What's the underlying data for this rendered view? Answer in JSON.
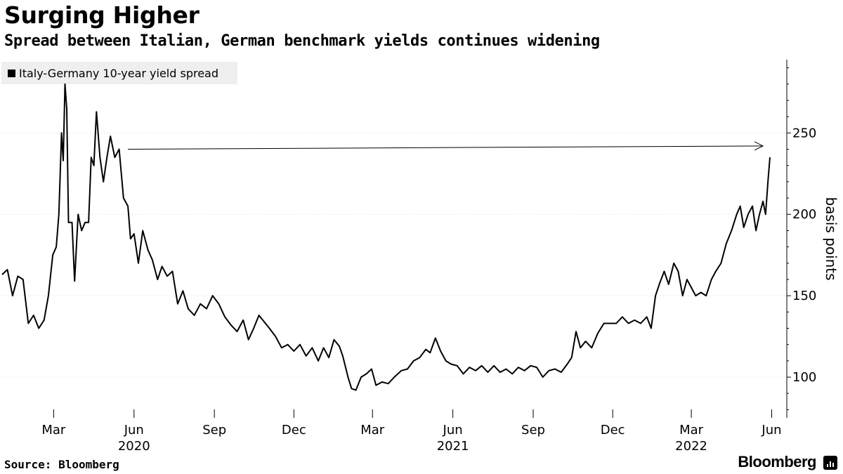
{
  "chart_data": {
    "type": "line",
    "title": "Surging Higher",
    "subtitle": "Spread between Italian, German benchmark yields continues widening",
    "legend": "Italy-Germany 10-year yield spread",
    "ylabel": "basis points",
    "ylim": [
      75,
      295
    ],
    "yticks": [
      100,
      150,
      200,
      250
    ],
    "x_month_ticks": [
      {
        "label": "Mar",
        "date": "2020-03-01"
      },
      {
        "label": "Jun",
        "date": "2020-06-01"
      },
      {
        "label": "Sep",
        "date": "2020-09-01"
      },
      {
        "label": "Dec",
        "date": "2020-12-01"
      },
      {
        "label": "Mar",
        "date": "2021-03-01"
      },
      {
        "label": "Jun",
        "date": "2021-06-01"
      },
      {
        "label": "Sep",
        "date": "2021-09-01"
      },
      {
        "label": "Dec",
        "date": "2021-12-01"
      },
      {
        "label": "Mar",
        "date": "2022-03-01"
      },
      {
        "label": "Jun",
        "date": "2022-06-01"
      }
    ],
    "x_year_labels": [
      {
        "label": "2020",
        "date": "2020-06-01"
      },
      {
        "label": "2021",
        "date": "2021-06-01"
      },
      {
        "label": "2022",
        "date": "2022-03-01"
      }
    ],
    "series": [
      {
        "name": "Italy-Germany 10-year yield spread",
        "points": [
          [
            "2020-01-02",
            163
          ],
          [
            "2020-01-08",
            166
          ],
          [
            "2020-01-14",
            150
          ],
          [
            "2020-01-20",
            162
          ],
          [
            "2020-01-26",
            160
          ],
          [
            "2020-02-01",
            133
          ],
          [
            "2020-02-07",
            138
          ],
          [
            "2020-02-13",
            130
          ],
          [
            "2020-02-19",
            135
          ],
          [
            "2020-02-24",
            150
          ],
          [
            "2020-02-29",
            175
          ],
          [
            "2020-03-04",
            180
          ],
          [
            "2020-03-07",
            200
          ],
          [
            "2020-03-10",
            250
          ],
          [
            "2020-03-12",
            233
          ],
          [
            "2020-03-14",
            280
          ],
          [
            "2020-03-16",
            265
          ],
          [
            "2020-03-18",
            195
          ],
          [
            "2020-03-22",
            195
          ],
          [
            "2020-03-25",
            159
          ],
          [
            "2020-03-29",
            200
          ],
          [
            "2020-04-02",
            190
          ],
          [
            "2020-04-06",
            195
          ],
          [
            "2020-04-10",
            195
          ],
          [
            "2020-04-13",
            235
          ],
          [
            "2020-04-16",
            230
          ],
          [
            "2020-04-19",
            263
          ],
          [
            "2020-04-23",
            235
          ],
          [
            "2020-04-27",
            220
          ],
          [
            "2020-05-01",
            235
          ],
          [
            "2020-05-05",
            248
          ],
          [
            "2020-05-10",
            235
          ],
          [
            "2020-05-15",
            240
          ],
          [
            "2020-05-20",
            210
          ],
          [
            "2020-05-25",
            205
          ],
          [
            "2020-05-28",
            185
          ],
          [
            "2020-06-01",
            188
          ],
          [
            "2020-06-06",
            170
          ],
          [
            "2020-06-11",
            190
          ],
          [
            "2020-06-17",
            178
          ],
          [
            "2020-06-22",
            172
          ],
          [
            "2020-06-28",
            160
          ],
          [
            "2020-07-03",
            168
          ],
          [
            "2020-07-09",
            162
          ],
          [
            "2020-07-15",
            165
          ],
          [
            "2020-07-21",
            145
          ],
          [
            "2020-07-27",
            153
          ],
          [
            "2020-08-02",
            142
          ],
          [
            "2020-08-09",
            138
          ],
          [
            "2020-08-16",
            145
          ],
          [
            "2020-08-23",
            142
          ],
          [
            "2020-08-30",
            150
          ],
          [
            "2020-09-06",
            145
          ],
          [
            "2020-09-13",
            137
          ],
          [
            "2020-09-20",
            132
          ],
          [
            "2020-09-27",
            128
          ],
          [
            "2020-10-04",
            135
          ],
          [
            "2020-10-10",
            123
          ],
          [
            "2020-10-16",
            130
          ],
          [
            "2020-10-22",
            138
          ],
          [
            "2020-10-28",
            134
          ],
          [
            "2020-11-03",
            130
          ],
          [
            "2020-11-10",
            125
          ],
          [
            "2020-11-17",
            118
          ],
          [
            "2020-11-24",
            120
          ],
          [
            "2020-12-01",
            116
          ],
          [
            "2020-12-08",
            120
          ],
          [
            "2020-12-15",
            113
          ],
          [
            "2020-12-22",
            118
          ],
          [
            "2020-12-29",
            110
          ],
          [
            "2021-01-04",
            118
          ],
          [
            "2021-01-10",
            112
          ],
          [
            "2021-01-16",
            123
          ],
          [
            "2021-01-22",
            119
          ],
          [
            "2021-01-26",
            113
          ],
          [
            "2021-02-01",
            100
          ],
          [
            "2021-02-05",
            93
          ],
          [
            "2021-02-10",
            92
          ],
          [
            "2021-02-16",
            100
          ],
          [
            "2021-02-22",
            102
          ],
          [
            "2021-02-28",
            105
          ],
          [
            "2021-03-05",
            95
          ],
          [
            "2021-03-12",
            97
          ],
          [
            "2021-03-19",
            96
          ],
          [
            "2021-03-26",
            100
          ],
          [
            "2021-04-03",
            104
          ],
          [
            "2021-04-10",
            105
          ],
          [
            "2021-04-17",
            110
          ],
          [
            "2021-04-24",
            112
          ],
          [
            "2021-05-01",
            117
          ],
          [
            "2021-05-06",
            115
          ],
          [
            "2021-05-12",
            124
          ],
          [
            "2021-05-18",
            116
          ],
          [
            "2021-05-24",
            110
          ],
          [
            "2021-05-30",
            108
          ],
          [
            "2021-06-06",
            107
          ],
          [
            "2021-06-13",
            102
          ],
          [
            "2021-06-20",
            106
          ],
          [
            "2021-06-27",
            104
          ],
          [
            "2021-07-04",
            107
          ],
          [
            "2021-07-11",
            103
          ],
          [
            "2021-07-18",
            107
          ],
          [
            "2021-07-25",
            103
          ],
          [
            "2021-08-01",
            105
          ],
          [
            "2021-08-08",
            102
          ],
          [
            "2021-08-15",
            106
          ],
          [
            "2021-08-22",
            104
          ],
          [
            "2021-08-29",
            107
          ],
          [
            "2021-09-05",
            106
          ],
          [
            "2021-09-12",
            100
          ],
          [
            "2021-09-19",
            104
          ],
          [
            "2021-09-26",
            105
          ],
          [
            "2021-10-03",
            103
          ],
          [
            "2021-10-10",
            108
          ],
          [
            "2021-10-15",
            112
          ],
          [
            "2021-10-20",
            128
          ],
          [
            "2021-10-25",
            118
          ],
          [
            "2021-10-31",
            122
          ],
          [
            "2021-11-07",
            118
          ],
          [
            "2021-11-14",
            127
          ],
          [
            "2021-11-21",
            133
          ],
          [
            "2021-11-28",
            133
          ],
          [
            "2021-12-05",
            133
          ],
          [
            "2021-12-12",
            137
          ],
          [
            "2021-12-19",
            133
          ],
          [
            "2021-12-26",
            135
          ],
          [
            "2022-01-02",
            133
          ],
          [
            "2022-01-09",
            137
          ],
          [
            "2022-01-14",
            130
          ],
          [
            "2022-01-19",
            150
          ],
          [
            "2022-01-24",
            158
          ],
          [
            "2022-01-29",
            165
          ],
          [
            "2022-02-03",
            157
          ],
          [
            "2022-02-09",
            170
          ],
          [
            "2022-02-14",
            165
          ],
          [
            "2022-02-19",
            150
          ],
          [
            "2022-02-24",
            160
          ],
          [
            "2022-03-01",
            155
          ],
          [
            "2022-03-06",
            150
          ],
          [
            "2022-03-12",
            152
          ],
          [
            "2022-03-18",
            150
          ],
          [
            "2022-03-24",
            160
          ],
          [
            "2022-03-29",
            165
          ],
          [
            "2022-04-04",
            170
          ],
          [
            "2022-04-10",
            182
          ],
          [
            "2022-04-16",
            190
          ],
          [
            "2022-04-22",
            200
          ],
          [
            "2022-04-26",
            205
          ],
          [
            "2022-04-30",
            192
          ],
          [
            "2022-05-05",
            200
          ],
          [
            "2022-05-10",
            205
          ],
          [
            "2022-05-14",
            190
          ],
          [
            "2022-05-18",
            200
          ],
          [
            "2022-05-22",
            208
          ],
          [
            "2022-05-25",
            200
          ],
          [
            "2022-05-28",
            222
          ],
          [
            "2022-05-30",
            235
          ]
        ]
      }
    ],
    "annotation": {
      "type": "arrow",
      "from": {
        "date": "2020-05-25",
        "y": 240
      },
      "to": {
        "date": "2022-05-22",
        "y": 242
      }
    }
  },
  "source": "Source: Bloomberg",
  "brand": "Bloomberg",
  "brand_icon": "bloomberg-logo-icon"
}
